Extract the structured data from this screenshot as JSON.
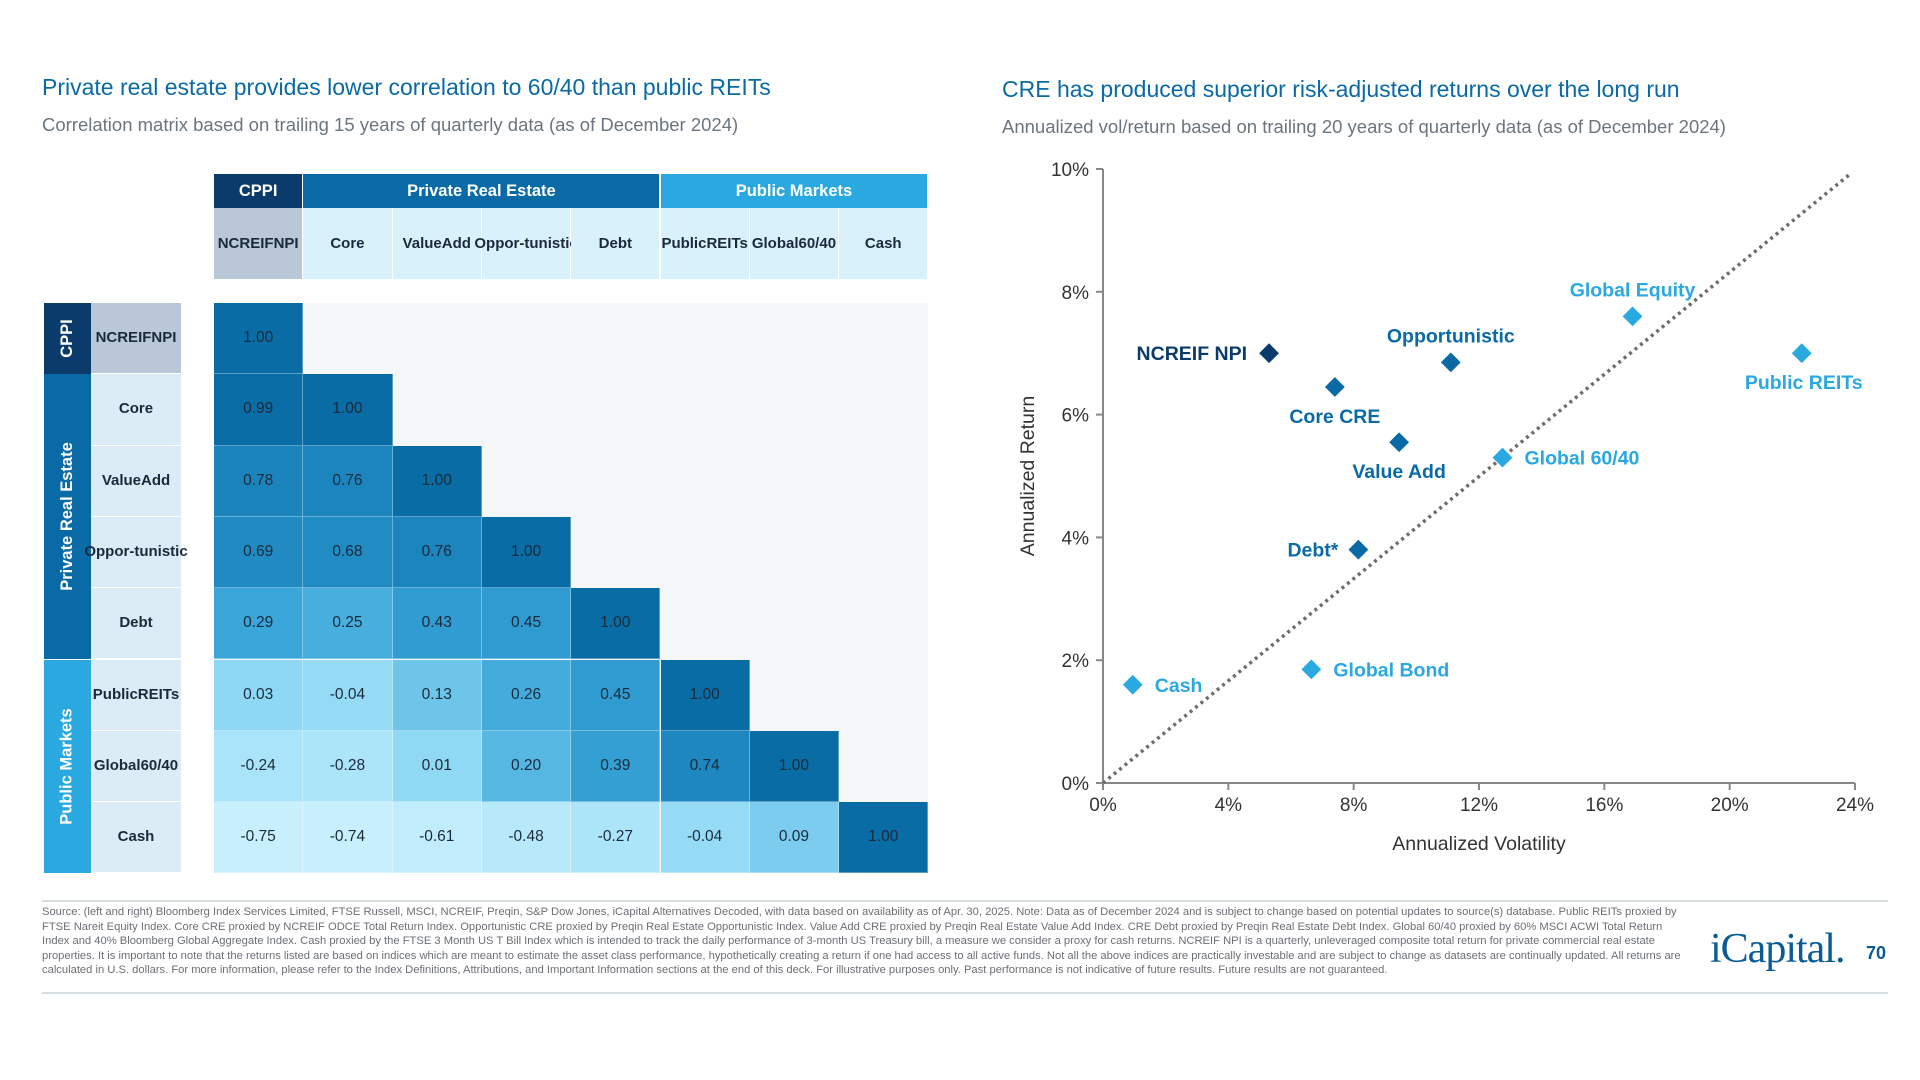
{
  "left": {
    "title": "Private real estate provides lower correlation to 60/40 than public REITs",
    "subtitle": "Correlation matrix based on trailing 15 years of quarterly data (as of December 2024)"
  },
  "right": {
    "title": "CRE has produced superior risk-adjusted returns over the long run",
    "subtitle": "Annualized vol/return based on trailing 20 years of quarterly data (as of December 2024)"
  },
  "colors": {
    "navy": "#0b3b6b",
    "mid_blue": "#0a6aa5",
    "light_blue": "#29a9e0",
    "cppi_gray": "#b9c7d6"
  },
  "chart_data": [
    {
      "type": "heatmap",
      "groups": [
        {
          "label": "CPPI",
          "span": 1
        },
        {
          "label": "Private Real Estate",
          "span": 4
        },
        {
          "label": "Public Markets",
          "span": 3
        }
      ],
      "columns": [
        "NCREIF NPI",
        "Core",
        "Value Add",
        "Oppor-tunistic",
        "Debt",
        "Public REITs",
        "Global 60/40",
        "Cash"
      ],
      "column_labels": [
        [
          "NCREIF",
          "NPI"
        ],
        [
          "Core"
        ],
        [
          "Value",
          "Add"
        ],
        [
          "Oppor-",
          "tunistic"
        ],
        [
          "Debt"
        ],
        [
          "Public",
          "REITs"
        ],
        [
          "Global",
          "60/40"
        ],
        [
          "Cash"
        ]
      ],
      "values": [
        [
          "1.00"
        ],
        [
          "0.99",
          "1.00"
        ],
        [
          "0.78",
          "0.76",
          "1.00"
        ],
        [
          "0.69",
          "0.68",
          "0.76",
          "1.00"
        ],
        [
          "0.29",
          "0.25",
          "0.43",
          "0.45",
          "1.00"
        ],
        [
          "0.03",
          "-0.04",
          "0.13",
          "0.26",
          "0.45",
          "1.00"
        ],
        [
          "-0.24",
          "-0.28",
          "0.01",
          "0.20",
          "0.39",
          "0.74",
          "1.00"
        ],
        [
          "-0.75",
          "-0.74",
          "-0.61",
          "-0.48",
          "-0.27",
          "-0.04",
          "0.09",
          "1.00"
        ]
      ]
    },
    {
      "type": "scatter",
      "xlabel": "Annualized Volatility",
      "ylabel": "Annualized Return",
      "xlim": [
        0,
        24
      ],
      "ylim": [
        0,
        10
      ],
      "xticks": [
        "0%",
        "4%",
        "8%",
        "12%",
        "16%",
        "20%",
        "24%"
      ],
      "yticks": [
        "0%",
        "2%",
        "4%",
        "6%",
        "8%",
        "10%"
      ],
      "grid": false,
      "reference_line": {
        "style": "dotted",
        "from": [
          0,
          0
        ],
        "to": [
          23.8,
          9.9
        ]
      },
      "points": [
        {
          "label": "NCREIF NPI",
          "x": 5.3,
          "y": 7.0,
          "color": "#0b3b6b"
        },
        {
          "label": "Core CRE",
          "x": 7.4,
          "y": 6.45,
          "color": "#0a6aa5"
        },
        {
          "label": "Opportunistic",
          "x": 11.1,
          "y": 6.85,
          "color": "#0a6aa5"
        },
        {
          "label": "Global Equity",
          "x": 16.9,
          "y": 7.6,
          "color": "#29a9e0"
        },
        {
          "label": "Public REITs",
          "x": 22.3,
          "y": 7.0,
          "color": "#29a9e0"
        },
        {
          "label": "Value Add",
          "x": 9.45,
          "y": 5.55,
          "color": "#0a6aa5"
        },
        {
          "label": "Global 60/40",
          "x": 12.75,
          "y": 5.3,
          "color": "#29a9e0"
        },
        {
          "label": "Debt*",
          "x": 8.15,
          "y": 3.8,
          "color": "#0a6aa5"
        },
        {
          "label": "Global Bond",
          "x": 6.65,
          "y": 1.85,
          "color": "#29a9e0"
        },
        {
          "label": "Cash",
          "x": 0.95,
          "y": 1.6,
          "color": "#29a9e0"
        }
      ]
    }
  ],
  "footnote": "Source: (left and right) Bloomberg Index Services Limited, FTSE Russell, MSCI, NCREIF, Preqin, S&P Dow Jones, iCapital Alternatives Decoded, with data based on availability as of Apr. 30, 2025. Note: Data as of December 2024 and is subject to change based on potential updates to source(s) database. Public REITs proxied by FTSE Nareit Equity Index. Core CRE proxied by NCREIF ODCE Total Return Index. Opportunistic CRE proxied by Preqin Real Estate Opportunistic Index. Value Add CRE proxied by Preqin Real Estate Value Add Index. CRE Debt proxied by Preqin Real Estate Debt Index. Global 60/40 proxied by 60% MSCI ACWI Total Return Index and 40% Bloomberg Global Aggregate Index. Cash proxied by the FTSE 3 Month US T Bill Index which is intended to track the daily performance of 3-month US Treasury bill, a measure we consider a proxy for cash returns. NCREIF NPI is a quarterly, unleveraged composite total return for private commercial real estate properties. It is important to note that the returns listed are based on indices which are meant to estimate the asset class performance, hypothetically creating a return if one had access to all active funds. Not all the above indices are practically investable and are subject to change as datasets are continually updated. All returns are calculated in U.S. dollars. For more information, please refer to the Index Definitions, Attributions, and Important Information sections at the end of this deck. For illustrative purposes only. Past performance is not indicative of future results. Future results are not guaranteed.",
  "logo": "iCapital.",
  "page_number": "70"
}
